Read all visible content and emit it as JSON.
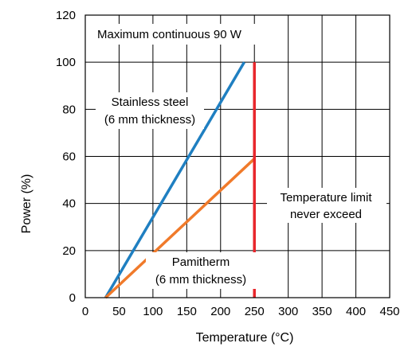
{
  "chart_data": {
    "type": "line",
    "title": "",
    "xlabel": "Temperature (°C)",
    "ylabel": "Power (%)",
    "xlim": [
      0,
      450
    ],
    "ylim": [
      0,
      120
    ],
    "x_ticks": [
      "0",
      "50",
      "100",
      "150",
      "200",
      "250",
      "300",
      "350",
      "400",
      "450"
    ],
    "y_ticks": [
      "0",
      "20",
      "40",
      "60",
      "80",
      "100",
      "120"
    ],
    "grid": true,
    "series": [
      {
        "name": "Stainless steel (6 mm thickness)",
        "color": "#1f7fc1",
        "x": [
          30,
          235
        ],
        "y": [
          0,
          100
        ]
      },
      {
        "name": "Pamitherm (6 mm thickness)",
        "color": "#f07a2a",
        "x": [
          30,
          250
        ],
        "y": [
          0,
          59
        ]
      },
      {
        "name": "Temperature limit never exceed",
        "color": "#e8262b",
        "x": [
          250,
          250
        ],
        "y": [
          0,
          100
        ]
      }
    ],
    "annotations": {
      "top": "Maximum continuous 90 W",
      "stainless_line1": "Stainless steel",
      "stainless_line2": "(6 mm thickness)",
      "pamitherm_line1": "Pamitherm",
      "pamitherm_line2": "(6 mm thickness)",
      "limit_line1": "Temperature limit",
      "limit_line2": "never exceed"
    }
  }
}
